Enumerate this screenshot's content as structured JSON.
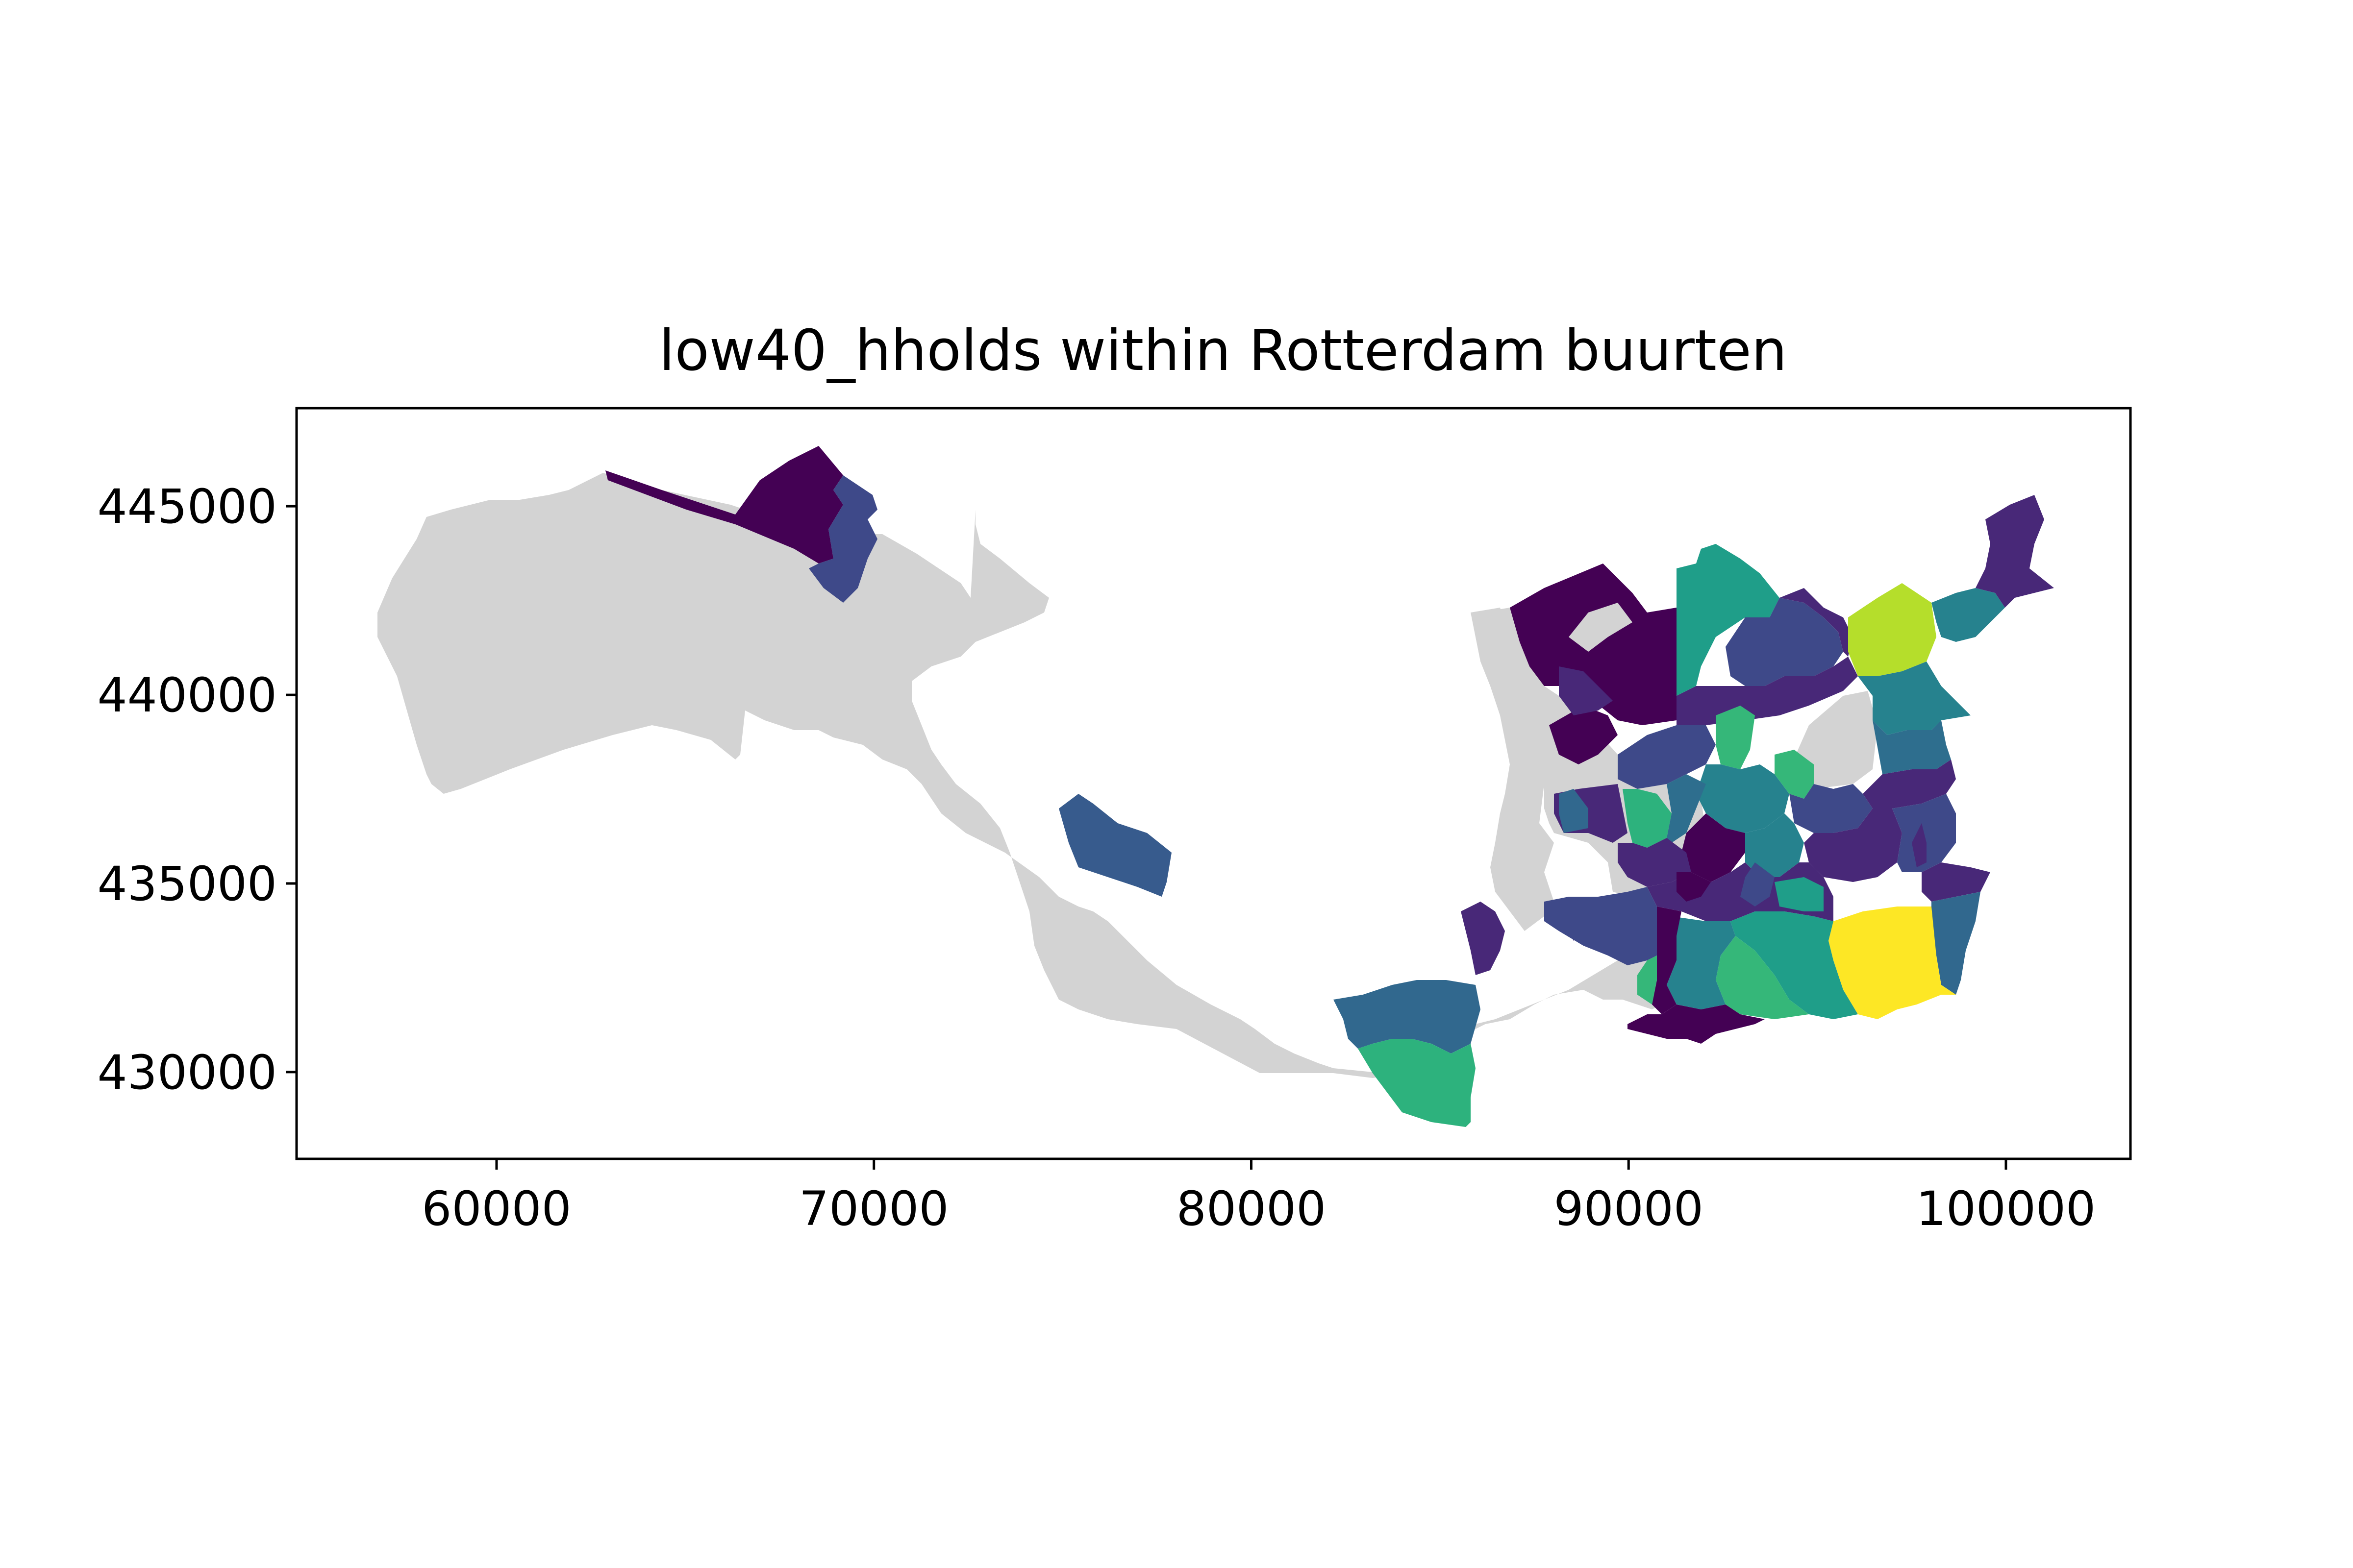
{
  "title": "low40_hholds within Rotterdam buurten",
  "colors": {
    "background": "#ffffff",
    "nodata": "#d3d3d3",
    "viridis": [
      "#440154",
      "#482878",
      "#3e4989",
      "#31688e",
      "#26828e",
      "#1f9e89",
      "#35b779",
      "#6ece58",
      "#b5de2b",
      "#fde725"
    ]
  },
  "x_axis": {
    "ticks": [
      {
        "value": 60000,
        "label": "60000"
      },
      {
        "value": 70000,
        "label": "70000"
      },
      {
        "value": 80000,
        "label": "80000"
      },
      {
        "value": 90000,
        "label": "90000"
      },
      {
        "value": 100000,
        "label": "100000"
      }
    ],
    "range": [
      54700,
      103300
    ]
  },
  "y_axis": {
    "ticks": [
      {
        "value": 445000,
        "label": "445000"
      },
      {
        "value": 440000,
        "label": "440000"
      },
      {
        "value": 435000,
        "label": "435000"
      },
      {
        "value": 430000,
        "label": "430000"
      }
    ],
    "range": [
      427700,
      447600
    ]
  }
}
